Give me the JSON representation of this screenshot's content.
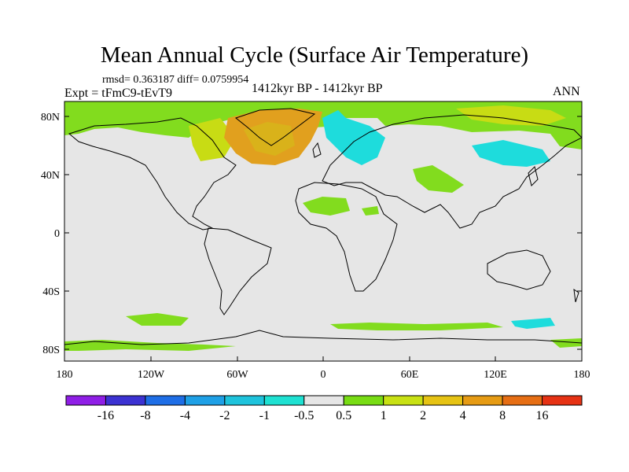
{
  "title": "Mean Annual Cycle (Surface Air Temperature)",
  "stats": "rmsd= 0.363187 diff= 0.0759954",
  "experiment": "Expt = tFmC9-tEvT9",
  "period": "1412kyr BP - 1412kyr BP",
  "season": "ANN",
  "lat_labels": [
    "80N",
    "40N",
    "0",
    "40S",
    "80S"
  ],
  "lon_labels": [
    "180",
    "120W",
    "60W",
    "0",
    "60E",
    "120E",
    "180"
  ],
  "colorbar": {
    "labels": [
      "-16",
      "-8",
      "-4",
      "-2",
      "-1",
      "-0.5",
      "0.5",
      "1",
      "2",
      "4",
      "8",
      "16"
    ],
    "colors": [
      "#8f1ee6",
      "#3c32d2",
      "#1e6ee6",
      "#1ea0e6",
      "#1ec3dc",
      "#1ee1d2",
      "#e6e6e6",
      "#78dc14",
      "#c8e114",
      "#e6c314",
      "#e69b14",
      "#e66e14",
      "#e63214"
    ]
  },
  "colors": {
    "ocean_land_neutral": "#e6e6e6",
    "green": "#82dc1e",
    "yellow_green": "#c8dc14",
    "orange": "#e1a01e",
    "cyan": "#1edcdc",
    "light_blue": "#28b4e6"
  }
}
